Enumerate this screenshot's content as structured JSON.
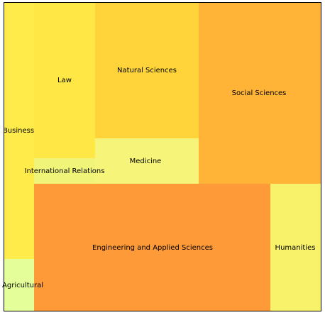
{
  "chart_data": {
    "type": "treemap",
    "title": "",
    "tiles": [
      {
        "label": "Business",
        "value": 9.6,
        "color": "#FFEB4A"
      },
      {
        "label": "Agricultural",
        "value": 1.2,
        "color": "#E4FF99"
      },
      {
        "label": "Law",
        "value": 5.2,
        "color": "#FFE845"
      },
      {
        "label": "International Relations",
        "value": 0.9,
        "color": "#F0F57A"
      },
      {
        "label": "Natural Sciences",
        "value": 7.3,
        "color": "#FFD43A"
      },
      {
        "label": "Medicine",
        "value": 2.3,
        "color": "#F6F57A"
      },
      {
        "label": "Social Sciences",
        "value": 9.4,
        "color": "#FFB438"
      },
      {
        "label": "Engineering and Applied Sciences",
        "value": 15.1,
        "color": "#FF9A38"
      },
      {
        "label": "Humanities",
        "value": 3.2,
        "color": "#F8F26A"
      }
    ]
  }
}
